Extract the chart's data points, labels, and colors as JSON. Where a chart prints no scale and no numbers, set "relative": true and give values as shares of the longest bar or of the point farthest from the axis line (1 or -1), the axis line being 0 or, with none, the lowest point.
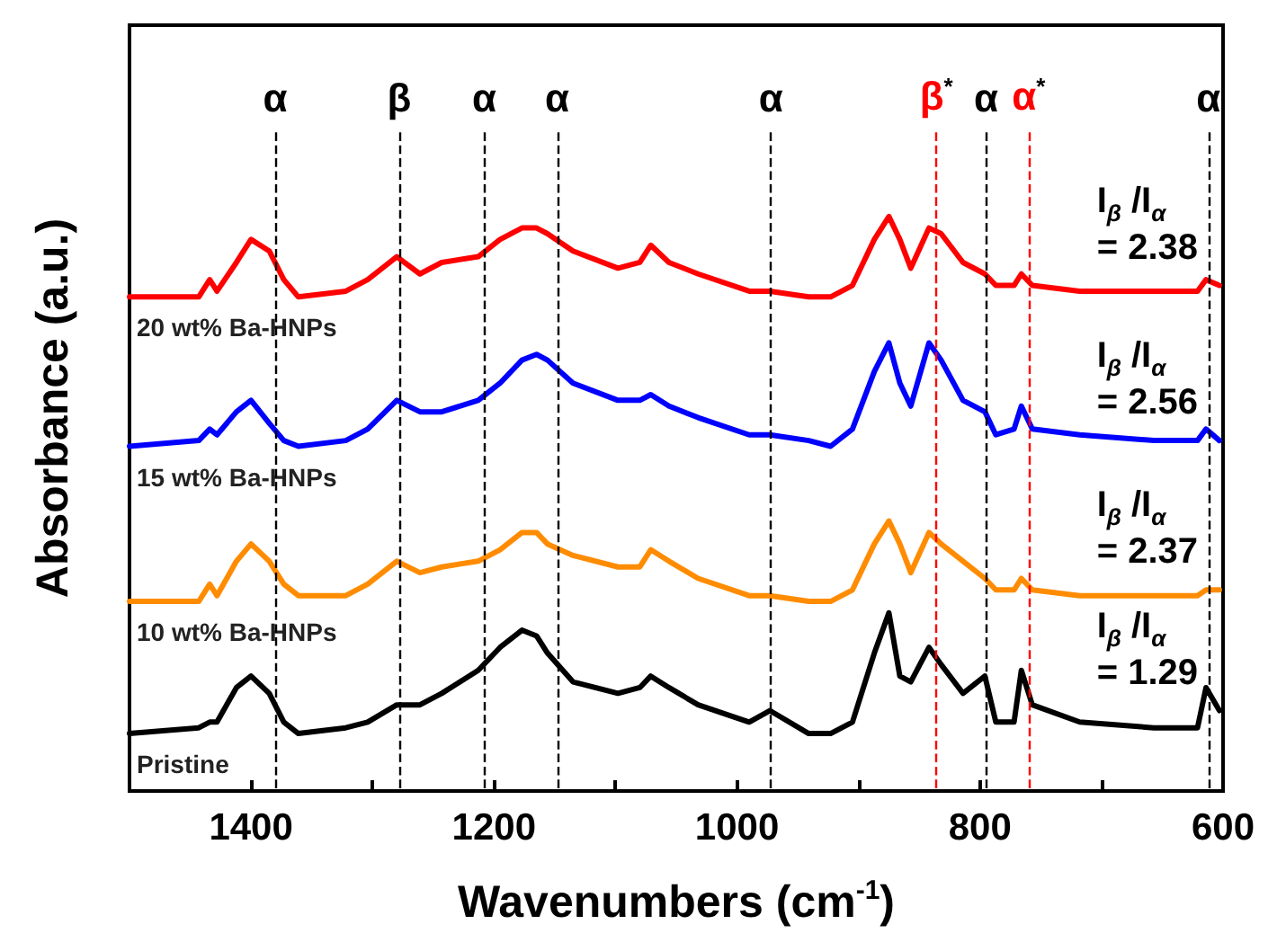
{
  "chart_data": {
    "type": "line",
    "relative": true,
    "xlabel": "Wavenumbers (cm$^{-1}$)",
    "ylabel": "Absorbance (a.u.)",
    "x": [
      1500,
      1443,
      1434,
      1428,
      1412,
      1400,
      1385,
      1373,
      1361,
      1322,
      1304,
      1280,
      1261,
      1243,
      1213,
      1195,
      1177,
      1165,
      1156,
      1135,
      1098,
      1080,
      1071,
      1056,
      1032,
      990,
      973,
      941,
      923,
      905,
      887,
      875,
      866,
      857,
      842,
      832,
      814,
      796,
      787,
      772,
      766,
      757,
      718,
      657,
      621,
      614,
      603
    ],
    "xlim": [
      1500,
      600
    ],
    "xticks": [
      {
        "value": 1500,
        "label": null
      },
      1400,
      {
        "value": 1300,
        "label": null
      },
      1200,
      {
        "value": 1100,
        "label": null
      },
      1000,
      {
        "value": 900,
        "label": null
      },
      800,
      {
        "value": 700,
        "label": null
      },
      600
    ],
    "series": [
      {
        "name": "20 wt% Ba-HNPs",
        "color": "#ff0000",
        "values": [
          0.86,
          0.86,
          0.89,
          0.87,
          0.92,
          0.96,
          0.94,
          0.89,
          0.86,
          0.87,
          0.89,
          0.93,
          0.9,
          0.92,
          0.93,
          0.96,
          0.98,
          0.98,
          0.97,
          0.94,
          0.91,
          0.92,
          0.95,
          0.92,
          0.9,
          0.87,
          0.87,
          0.86,
          0.86,
          0.88,
          0.96,
          1.0,
          0.96,
          0.91,
          0.98,
          0.97,
          0.92,
          0.9,
          0.88,
          0.88,
          0.9,
          0.88,
          0.87,
          0.87,
          0.87,
          0.89,
          0.88
        ]
      },
      {
        "name": "15 wt% Ba-HNPs",
        "color": "#0000ff",
        "values": [
          0.6,
          0.61,
          0.63,
          0.62,
          0.66,
          0.68,
          0.64,
          0.61,
          0.6,
          0.61,
          0.63,
          0.68,
          0.66,
          0.66,
          0.68,
          0.71,
          0.75,
          0.76,
          0.75,
          0.71,
          0.68,
          0.68,
          0.69,
          0.67,
          0.65,
          0.62,
          0.62,
          0.61,
          0.6,
          0.63,
          0.73,
          0.78,
          0.71,
          0.67,
          0.78,
          0.75,
          0.68,
          0.66,
          0.62,
          0.63,
          0.67,
          0.63,
          0.62,
          0.61,
          0.61,
          0.63,
          0.61
        ]
      },
      {
        "name": "10 wt% Ba-HNPs",
        "color": "#ff8c00",
        "values": [
          0.33,
          0.33,
          0.36,
          0.34,
          0.4,
          0.43,
          0.4,
          0.36,
          0.34,
          0.34,
          0.36,
          0.4,
          0.38,
          0.39,
          0.4,
          0.42,
          0.45,
          0.45,
          0.43,
          0.41,
          0.39,
          0.39,
          0.42,
          0.4,
          0.37,
          0.34,
          0.34,
          0.33,
          0.33,
          0.35,
          0.43,
          0.47,
          0.43,
          0.38,
          0.45,
          0.43,
          0.4,
          0.37,
          0.35,
          0.35,
          0.37,
          0.35,
          0.34,
          0.34,
          0.34,
          0.35,
          0.35
        ]
      },
      {
        "name": "Pristine",
        "color": "#000000",
        "values": [
          0.1,
          0.11,
          0.12,
          0.12,
          0.18,
          0.2,
          0.17,
          0.12,
          0.1,
          0.11,
          0.12,
          0.15,
          0.15,
          0.17,
          0.21,
          0.25,
          0.28,
          0.27,
          0.24,
          0.19,
          0.17,
          0.18,
          0.2,
          0.18,
          0.15,
          0.12,
          0.14,
          0.1,
          0.1,
          0.12,
          0.24,
          0.31,
          0.2,
          0.19,
          0.25,
          0.22,
          0.17,
          0.2,
          0.12,
          0.12,
          0.21,
          0.15,
          0.12,
          0.11,
          0.11,
          0.18,
          0.14
        ]
      }
    ],
    "ref_lines": [
      {
        "axis": "x",
        "value": 1380,
        "label": "α",
        "color": "#000000",
        "line_style": "dashed"
      },
      {
        "axis": "x",
        "value": 1278,
        "label": "β",
        "color": "#000000",
        "line_style": "dashed"
      },
      {
        "axis": "x",
        "value": 1208,
        "label": "α",
        "color": "#000000",
        "line_style": "dashed"
      },
      {
        "axis": "x",
        "value": 1148,
        "label": "α",
        "color": "#000000",
        "line_style": "dashed"
      },
      {
        "axis": "x",
        "value": 972,
        "label": "α",
        "color": "#000000",
        "line_style": "dashed"
      },
      {
        "axis": "x",
        "value": 836,
        "label": "β$^{*}$",
        "color": "#ff0000",
        "line_style": "dashed"
      },
      {
        "axis": "x",
        "value": 795,
        "label": "α",
        "color": "#000000",
        "line_style": "dashed"
      },
      {
        "axis": "x",
        "value": 760,
        "label": "α$^{*}$",
        "color": "#ff0000",
        "line_style": "dashed"
      },
      {
        "axis": "x",
        "value": 612,
        "label": "α",
        "color": "#000000",
        "line_style": "dashed"
      }
    ],
    "annotations": [
      "I$_{β}$ /I$_{α}$\n= 2.38",
      "I$_{β}$ /I$_{α}$\n= 2.56",
      "I$_{β}$ /I$_{α}$\n= 2.37",
      "I$_{β}$ /I$_{α}$\n= 1.29"
    ],
    "grid": false,
    "legend": false,
    "line_style": "solid"
  }
}
